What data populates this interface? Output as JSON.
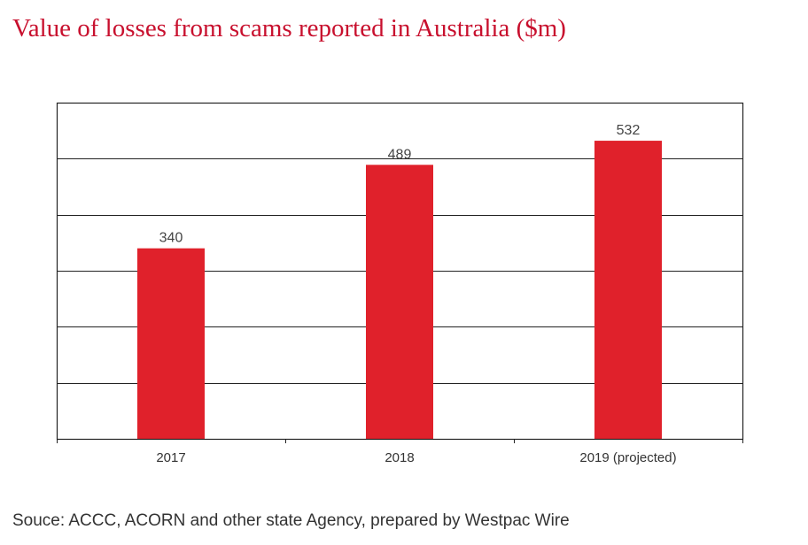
{
  "chart_data": {
    "type": "bar",
    "title": "Value of losses from scams reported in Australia ($m)",
    "categories": [
      "2017",
      "2018",
      "2019 (projected)"
    ],
    "values": [
      340,
      489,
      532
    ],
    "data_labels": [
      "340",
      "489",
      "532"
    ],
    "xlabel": "",
    "ylabel": "",
    "ylim": [
      0,
      600
    ],
    "y_gridlines": [
      100,
      200,
      300,
      400,
      500
    ],
    "y_tick_labels_shown": false,
    "grid": true,
    "legend": "none",
    "bar_color": "#e0212b",
    "title_color": "#c8102e"
  },
  "source": "Souce: ACCC, ACORN and other state Agency, prepared by Westpac Wire"
}
